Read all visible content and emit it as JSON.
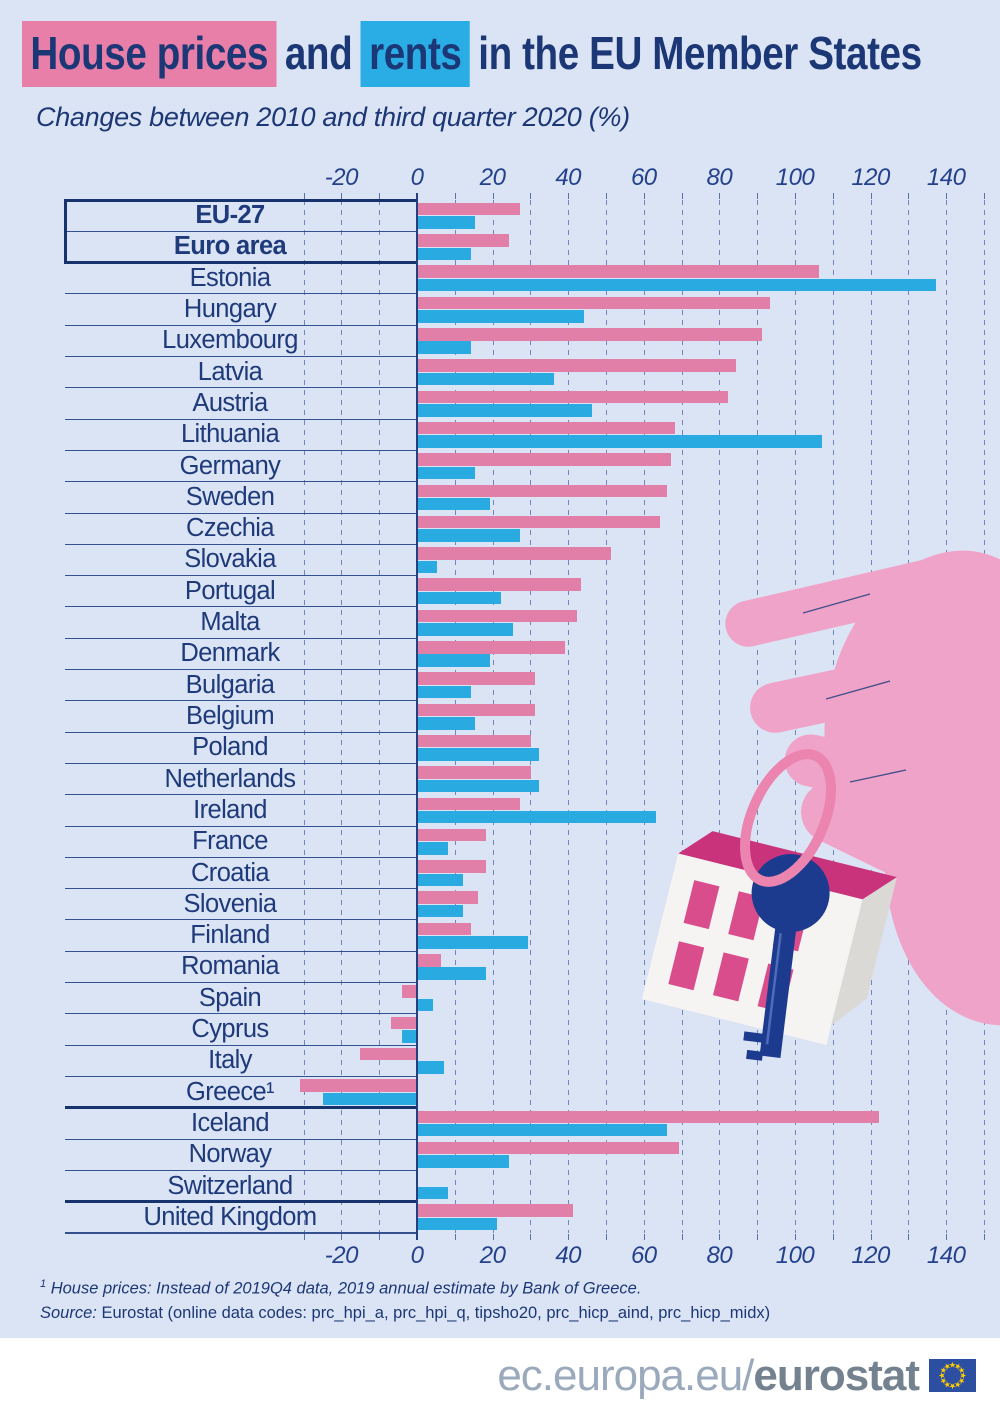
{
  "page": {
    "background": "#dbe4f4",
    "accent_navy": "#1e3a7a"
  },
  "title": {
    "highlight_pink_text": "House prices",
    "mid_text": "and",
    "highlight_blue_text": "rents",
    "rest_text": "in the EU Member States",
    "pink": "#e87fa9",
    "blue": "#2aace4"
  },
  "subtitle": "Changes between 2010 and third quarter 2020 (%)",
  "chart_data": {
    "type": "bar",
    "orientation": "horizontal",
    "unit": "%",
    "title": "House prices and rents in the EU Member States",
    "subtitle": "Changes between 2010 and third quarter 2020 (%)",
    "xlim": [
      -30,
      150
    ],
    "axis_ticks": [
      -20,
      0,
      20,
      40,
      60,
      80,
      100,
      120,
      140
    ],
    "grid_step": 10,
    "grid": true,
    "categories": [
      "EU-27",
      "Euro area",
      "Estonia",
      "Hungary",
      "Luxembourg",
      "Latvia",
      "Austria",
      "Lithuania",
      "Germany",
      "Sweden",
      "Czechia",
      "Slovakia",
      "Portugal",
      "Malta",
      "Denmark",
      "Bulgaria",
      "Belgium",
      "Poland",
      "Netherlands",
      "Ireland",
      "France",
      "Croatia",
      "Slovenia",
      "Finland",
      "Romania",
      "Spain",
      "Cyprus",
      "Italy",
      "Greece¹",
      "Iceland",
      "Norway",
      "Switzerland",
      "United Kingdom"
    ],
    "series": [
      {
        "name": "House prices",
        "color": "#e27fa9",
        "values": [
          27,
          24,
          106,
          93,
          91,
          84,
          82,
          68,
          67,
          66,
          64,
          51,
          43,
          42,
          39,
          31,
          31,
          30,
          30,
          27,
          18,
          18,
          16,
          14,
          6,
          -4,
          -7,
          -15,
          -31,
          122,
          69,
          null,
          41
        ]
      },
      {
        "name": "Rents",
        "color": "#29abe2",
        "values": [
          15,
          14,
          137,
          44,
          14,
          36,
          46,
          107,
          15,
          19,
          27,
          5,
          22,
          25,
          19,
          14,
          15,
          32,
          32,
          63,
          8,
          12,
          12,
          29,
          18,
          4,
          -4,
          7,
          -25,
          66,
          24,
          8,
          21
        ]
      }
    ],
    "bold_categories": [
      "EU-27",
      "Euro area"
    ],
    "group_separators_after": [
      "Euro area",
      "Greece¹",
      "Switzerland"
    ]
  },
  "footnote": {
    "marker": "1",
    "text": "House prices: Instead of 2019Q4 data, 2019 annual estimate by Bank of Greece."
  },
  "source": {
    "label": "Source:",
    "text": "Eurostat (online data codes: prc_hpi_a, prc_hpi_q, tipsho20, prc_hicp_aind, prc_hicp_midx)"
  },
  "footer": {
    "url_light": "ec.europa.eu/",
    "url_bold": "eurostat",
    "flag_blue": "#2d4fa1",
    "star_yellow": "#ffcc00"
  }
}
